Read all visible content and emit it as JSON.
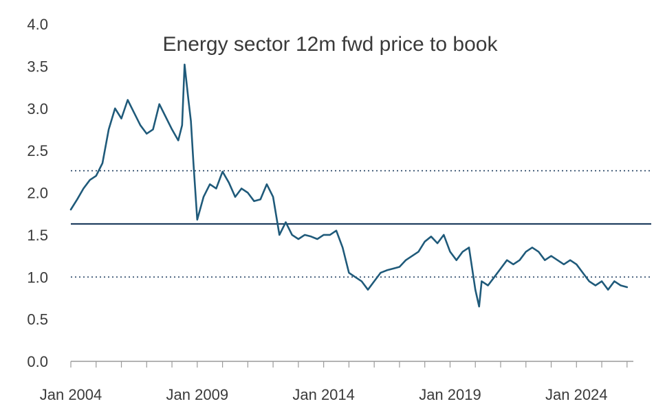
{
  "chart_data": {
    "type": "line",
    "title": "Energy sector 12m fwd price to book",
    "xlabel": "",
    "ylabel": "",
    "xlim": [
      2004.0,
      2026.25
    ],
    "ylim": [
      0.0,
      4.0
    ],
    "y_ticks": [
      "0.0",
      "0.5",
      "1.0",
      "1.5",
      "2.0",
      "2.5",
      "3.0",
      "3.5",
      "4.0"
    ],
    "x_ticks": [
      {
        "label": "Jan 2004",
        "x": 2004.0
      },
      {
        "label": "Jan 2009",
        "x": 2009.0
      },
      {
        "label": "Jan 2014",
        "x": 2014.0
      },
      {
        "label": "Jan 2019",
        "x": 2019.0
      },
      {
        "label": "Jan 2024",
        "x": 2024.0
      }
    ],
    "grid": false,
    "legend": "none",
    "colors": {
      "series": "#1f5a7a",
      "mean": "#1b3a5c",
      "band": "#1b3a5c",
      "axis": "#9a9a9a",
      "text": "#3a3a3a"
    },
    "reference_lines": [
      {
        "y": 1.63,
        "style": "solid"
      },
      {
        "y": 2.26,
        "style": "dotted"
      },
      {
        "y": 1.0,
        "style": "dotted"
      }
    ],
    "series": [
      {
        "x": [
          2004.0,
          2004.25,
          2004.5,
          2004.75,
          2005.0,
          2005.25,
          2005.5,
          2005.75,
          2006.0,
          2006.25,
          2006.5,
          2006.75,
          2007.0,
          2007.25,
          2007.5,
          2007.75,
          2008.0,
          2008.25,
          2008.4,
          2008.5,
          2008.65,
          2008.75,
          2008.85,
          2009.0,
          2009.25,
          2009.5,
          2009.75,
          2010.0,
          2010.25,
          2010.5,
          2010.75,
          2011.0,
          2011.25,
          2011.5,
          2011.75,
          2012.0,
          2012.25,
          2012.5,
          2012.75,
          2013.0,
          2013.25,
          2013.5,
          2013.75,
          2014.0,
          2014.25,
          2014.5,
          2014.75,
          2015.0,
          2015.25,
          2015.5,
          2015.75,
          2016.0,
          2016.25,
          2016.5,
          2016.75,
          2017.0,
          2017.25,
          2017.5,
          2017.75,
          2018.0,
          2018.25,
          2018.5,
          2018.75,
          2019.0,
          2019.25,
          2019.5,
          2019.75,
          2020.0,
          2020.15,
          2020.25,
          2020.5,
          2020.75,
          2021.0,
          2021.25,
          2021.5,
          2021.75,
          2022.0,
          2022.25,
          2022.5,
          2022.75,
          2023.0,
          2023.25,
          2023.5,
          2023.75,
          2024.0,
          2024.25,
          2024.5,
          2024.75,
          2025.0,
          2025.25,
          2025.5,
          2025.75,
          2026.0
        ],
        "y": [
          1.8,
          1.92,
          2.05,
          2.15,
          2.2,
          2.35,
          2.75,
          3.0,
          2.88,
          3.1,
          2.95,
          2.8,
          2.7,
          2.75,
          3.05,
          2.9,
          2.75,
          2.62,
          2.8,
          3.52,
          3.1,
          2.85,
          2.35,
          1.68,
          1.95,
          2.1,
          2.05,
          2.25,
          2.12,
          1.95,
          2.05,
          2.0,
          1.9,
          1.92,
          2.1,
          1.95,
          1.5,
          1.65,
          1.5,
          1.45,
          1.5,
          1.48,
          1.45,
          1.5,
          1.5,
          1.55,
          1.35,
          1.05,
          1.0,
          0.95,
          0.85,
          0.95,
          1.05,
          1.08,
          1.1,
          1.12,
          1.2,
          1.25,
          1.3,
          1.42,
          1.48,
          1.4,
          1.5,
          1.3,
          1.2,
          1.3,
          1.35,
          0.85,
          0.65,
          0.95,
          0.9,
          1.0,
          1.1,
          1.2,
          1.15,
          1.2,
          1.3,
          1.35,
          1.3,
          1.2,
          1.25,
          1.2,
          1.15,
          1.2,
          1.15,
          1.05,
          0.95,
          0.9,
          0.95,
          0.85,
          0.95,
          0.9,
          0.88
        ]
      }
    ]
  }
}
